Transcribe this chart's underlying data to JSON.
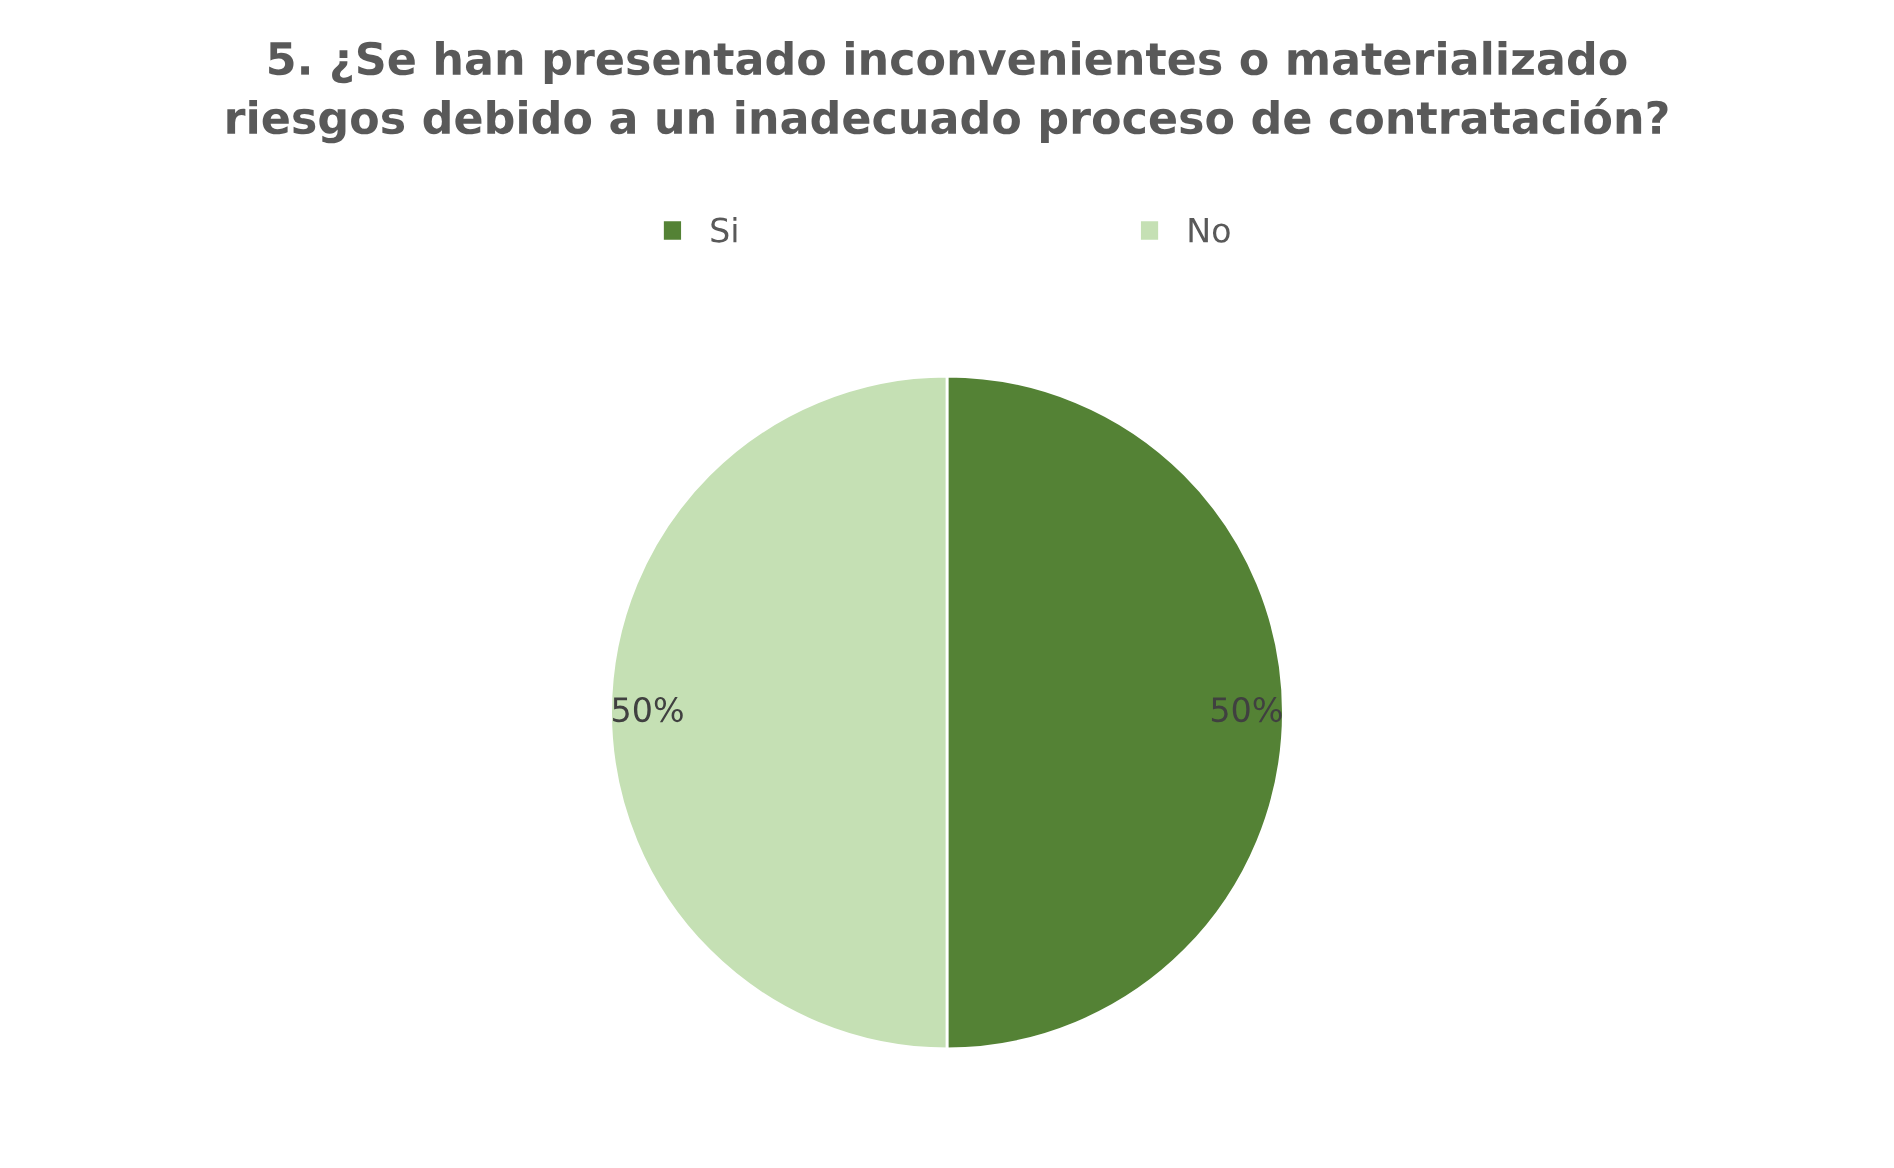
{
  "chart_data": {
    "type": "pie",
    "title": "5. ¿Se han presentado inconvenientes o materializado\nriesgos debido a un inadecuado proceso de contratación?",
    "categories": [
      "Si",
      "No"
    ],
    "values": [
      50,
      50
    ],
    "colors": [
      "#548235",
      "#c5e0b4"
    ],
    "value_labels": [
      "50%",
      "50%"
    ],
    "legend": "top"
  }
}
